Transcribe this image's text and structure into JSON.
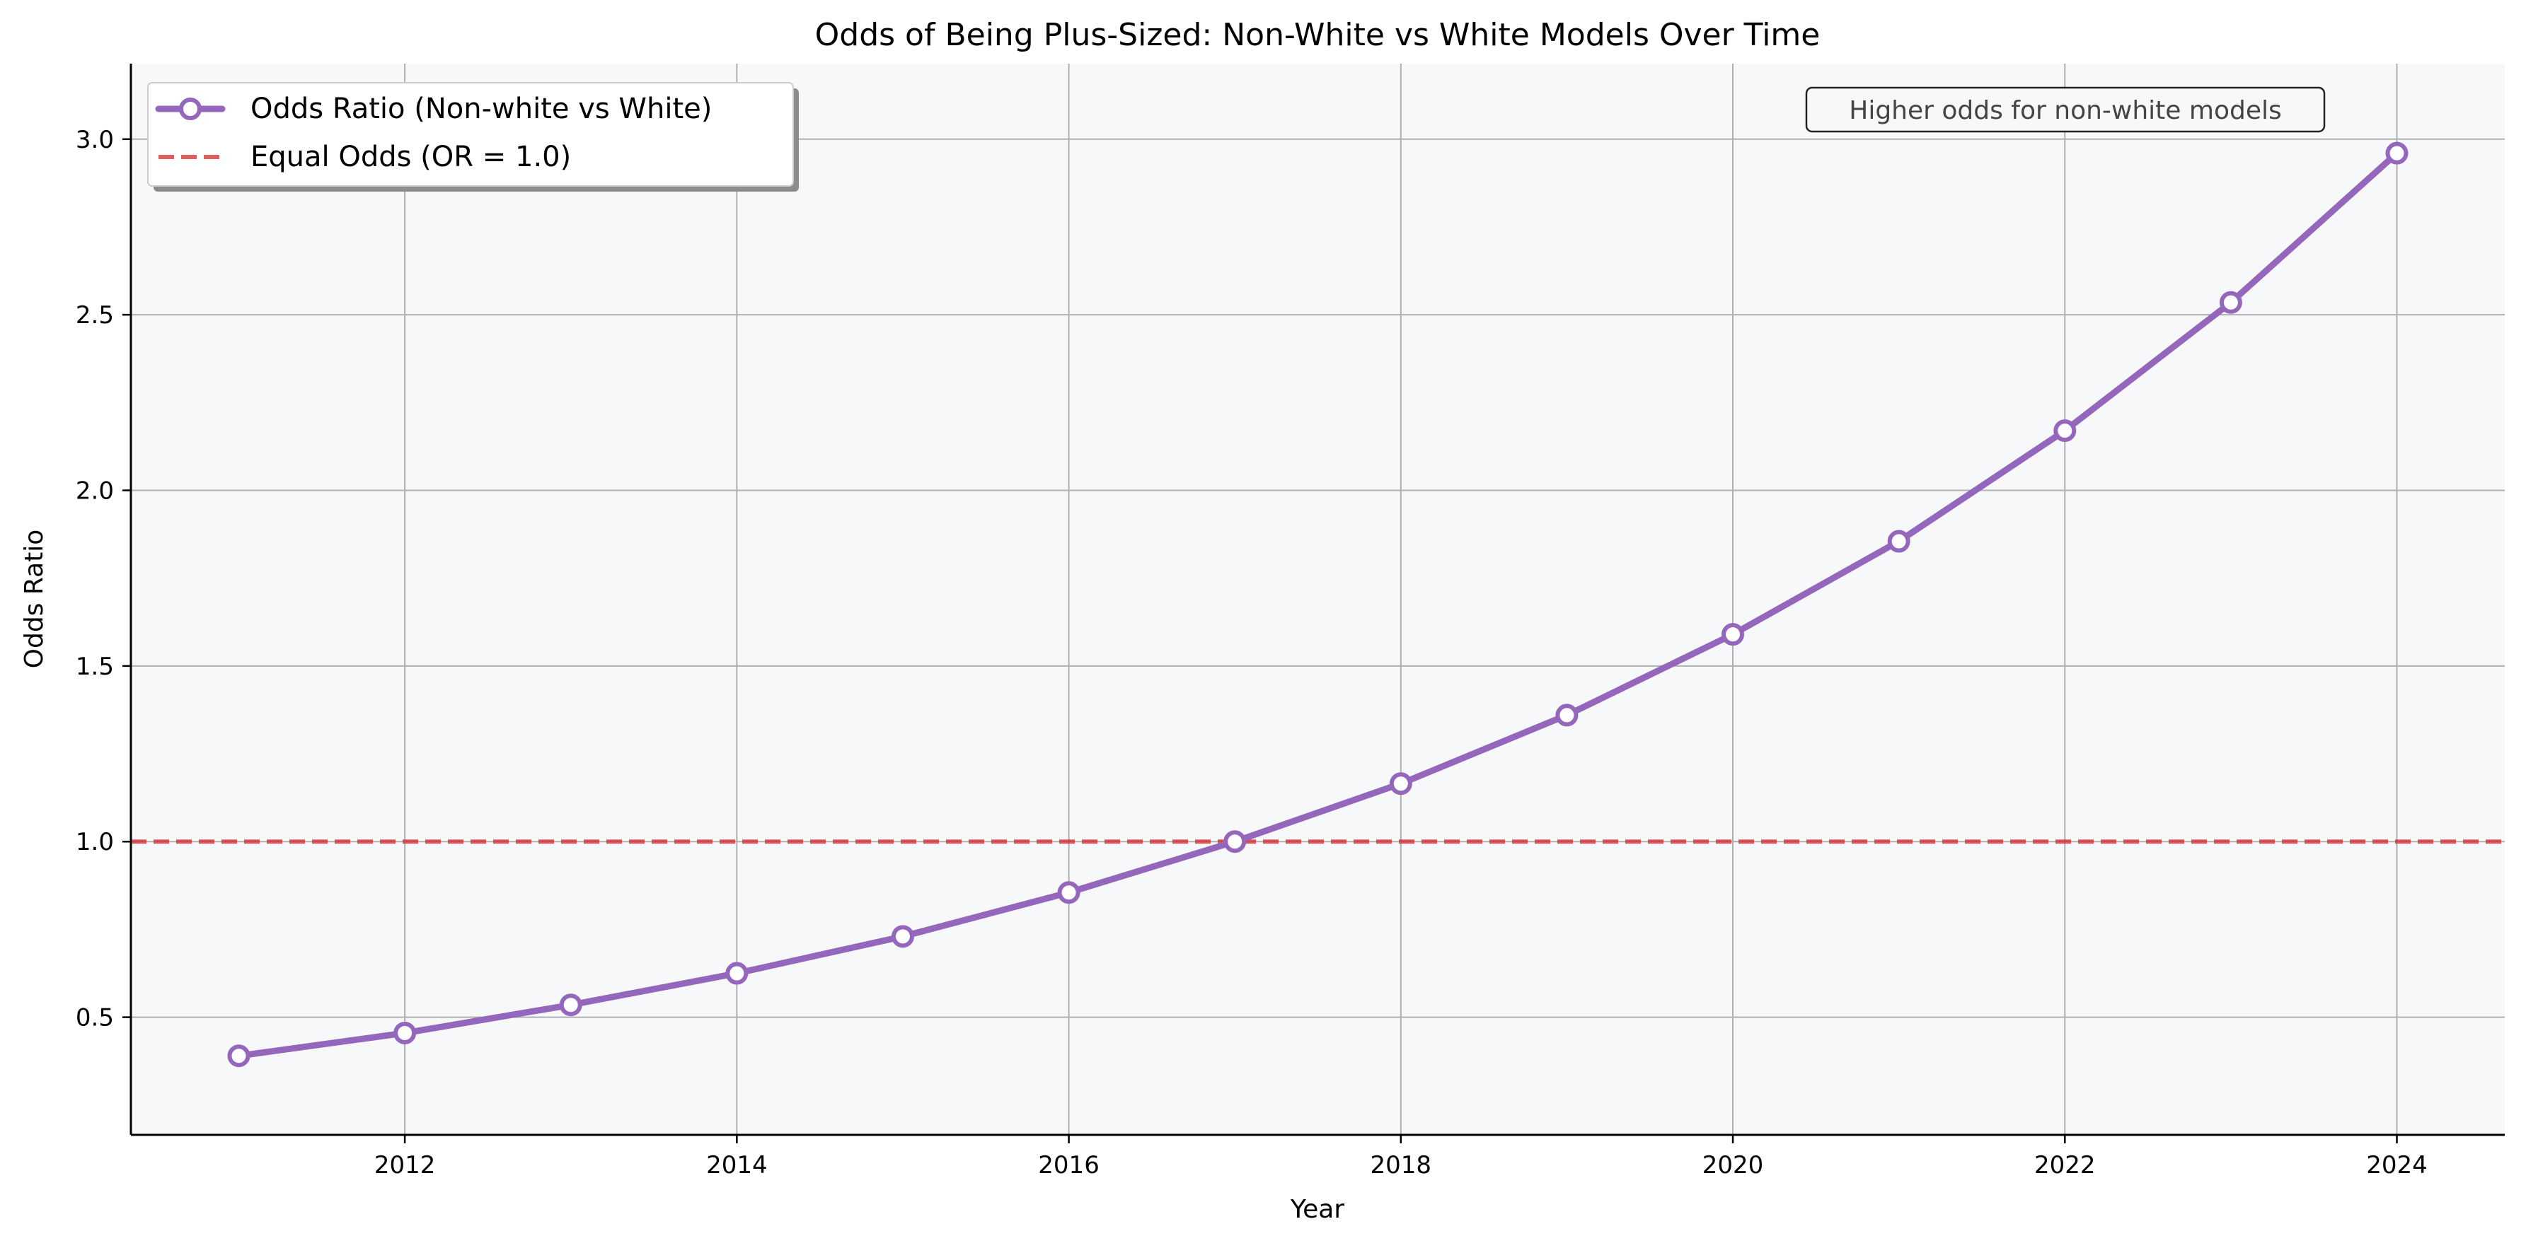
{
  "chart_data": {
    "type": "line",
    "title": "Odds of Being Plus-Sized: Non-White vs White Models Over Time",
    "xlabel": "Year",
    "ylabel": "Odds Ratio",
    "xlim": [
      2010.35,
      2024.65
    ],
    "ylim": [
      0.165,
      3.215
    ],
    "x_ticks": [
      2012,
      2014,
      2016,
      2018,
      2020,
      2022,
      2024
    ],
    "y_ticks": [
      0.5,
      1.0,
      1.5,
      2.0,
      2.5,
      3.0
    ],
    "x_tick_labels": [
      "2012",
      "2014",
      "2016",
      "2018",
      "2020",
      "2022",
      "2024"
    ],
    "y_tick_labels": [
      "0.5",
      "1.0",
      "1.5",
      "2.0",
      "2.5",
      "3.0"
    ],
    "grid": true,
    "legend_position": "top-left",
    "series": [
      {
        "name": "Odds Ratio (Non-white vs White)",
        "color": "#9467bd",
        "marker": "open-circle",
        "x": [
          2011,
          2012,
          2013,
          2014,
          2015,
          2016,
          2017,
          2018,
          2019,
          2020,
          2021,
          2022,
          2023,
          2024
        ],
        "y": [
          0.39,
          0.455,
          0.535,
          0.625,
          0.73,
          0.855,
          1.0,
          1.165,
          1.36,
          1.59,
          1.855,
          2.17,
          2.535,
          2.96
        ]
      }
    ],
    "reference_line": {
      "name": "Equal Odds (OR = 1.0)",
      "y": 1.0,
      "color": "#d62728",
      "style": "dashed"
    },
    "annotation": {
      "text": "Higher odds for non-white models"
    },
    "colors": {
      "plot_background": "#f7f8fa",
      "grid": "#b0b0b0",
      "axis": "#000000"
    }
  }
}
